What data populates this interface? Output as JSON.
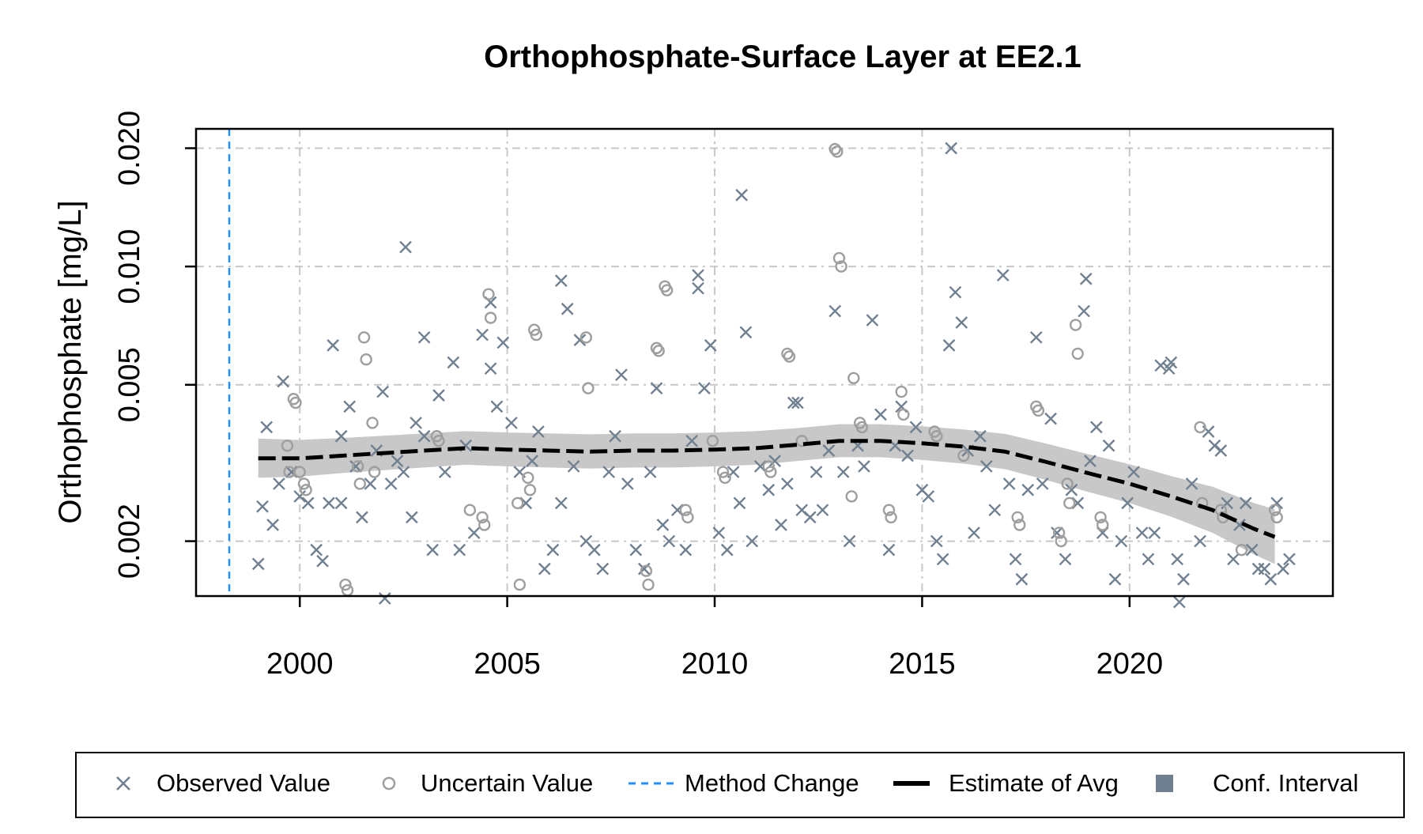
{
  "chart_data": {
    "type": "scatter",
    "title": "Orthophosphate-Surface Layer at EE2.1",
    "xlabel": "",
    "ylabel": "Orthophosphate [mg/L]",
    "x_scale": "linear",
    "y_scale": "log",
    "xlim": [
      1997.5,
      2024.9
    ],
    "ylim": [
      0.00145,
      0.0224
    ],
    "x_ticks": [
      2000,
      2005,
      2010,
      2015,
      2020
    ],
    "x_tick_labels": [
      "2000",
      "2005",
      "2010",
      "2015",
      "2020"
    ],
    "y_ticks": [
      0.002,
      0.005,
      0.01,
      0.02
    ],
    "y_tick_labels": [
      "0.002",
      "0.005",
      "0.010",
      "0.020"
    ],
    "grid": true,
    "legend": {
      "position": "bottom",
      "entries": [
        "Observed Value",
        "Uncertain Value",
        "Method Change",
        "Estimate of Avg",
        "Conf. Interval"
      ]
    },
    "colors": {
      "observed": "#708090",
      "uncertain": "#9e9e9e",
      "method_change": "#1e90ff",
      "estimate": "#000000",
      "ci_band": "#c8c8c8",
      "ci_legend": "#708090",
      "grid": "#c8c8c8"
    },
    "method_change_x": 1998.3,
    "estimate_of_avg": [
      {
        "x": 1999.0,
        "y": 0.00325,
        "lo": 0.0029,
        "hi": 0.00365
      },
      {
        "x": 2000.0,
        "y": 0.00325,
        "lo": 0.00292,
        "hi": 0.00362
      },
      {
        "x": 2001.0,
        "y": 0.0033,
        "lo": 0.00298,
        "hi": 0.00366
      },
      {
        "x": 2002.0,
        "y": 0.00335,
        "lo": 0.00303,
        "hi": 0.00371
      },
      {
        "x": 2003.0,
        "y": 0.0034,
        "lo": 0.00308,
        "hi": 0.00376
      },
      {
        "x": 2004.0,
        "y": 0.00345,
        "lo": 0.00313,
        "hi": 0.00381
      },
      {
        "x": 2005.0,
        "y": 0.00342,
        "lo": 0.0031,
        "hi": 0.00378
      },
      {
        "x": 2006.0,
        "y": 0.0034,
        "lo": 0.00308,
        "hi": 0.00376
      },
      {
        "x": 2007.0,
        "y": 0.00338,
        "lo": 0.00306,
        "hi": 0.00374
      },
      {
        "x": 2008.0,
        "y": 0.0034,
        "lo": 0.00308,
        "hi": 0.00376
      },
      {
        "x": 2009.0,
        "y": 0.0034,
        "lo": 0.00308,
        "hi": 0.00376
      },
      {
        "x": 2010.0,
        "y": 0.00342,
        "lo": 0.0031,
        "hi": 0.00378
      },
      {
        "x": 2011.0,
        "y": 0.00345,
        "lo": 0.00313,
        "hi": 0.00381
      },
      {
        "x": 2012.0,
        "y": 0.00352,
        "lo": 0.0032,
        "hi": 0.00388
      },
      {
        "x": 2013.0,
        "y": 0.0036,
        "lo": 0.00327,
        "hi": 0.00397
      },
      {
        "x": 2014.0,
        "y": 0.0036,
        "lo": 0.00327,
        "hi": 0.00397
      },
      {
        "x": 2015.0,
        "y": 0.00355,
        "lo": 0.00322,
        "hi": 0.00392
      },
      {
        "x": 2016.0,
        "y": 0.00348,
        "lo": 0.00315,
        "hi": 0.00385
      },
      {
        "x": 2017.0,
        "y": 0.00338,
        "lo": 0.00305,
        "hi": 0.00375
      },
      {
        "x": 2018.0,
        "y": 0.00318,
        "lo": 0.00286,
        "hi": 0.00354
      },
      {
        "x": 2019.0,
        "y": 0.00298,
        "lo": 0.00267,
        "hi": 0.00333
      },
      {
        "x": 2020.0,
        "y": 0.0028,
        "lo": 0.0025,
        "hi": 0.00314
      },
      {
        "x": 2021.0,
        "y": 0.0026,
        "lo": 0.00231,
        "hi": 0.00293
      },
      {
        "x": 2022.0,
        "y": 0.0024,
        "lo": 0.0021,
        "hi": 0.00275
      },
      {
        "x": 2023.0,
        "y": 0.00215,
        "lo": 0.00185,
        "hi": 0.0025
      },
      {
        "x": 2023.5,
        "y": 0.00205,
        "lo": 0.00175,
        "hi": 0.00241
      }
    ],
    "observed": [
      [
        1999.0,
        0.00175
      ],
      [
        1999.1,
        0.00245
      ],
      [
        1999.2,
        0.0039
      ],
      [
        1999.35,
        0.0022
      ],
      [
        1999.5,
        0.0028
      ],
      [
        1999.6,
        0.0051
      ],
      [
        1999.8,
        0.003
      ],
      [
        2000.0,
        0.0026
      ],
      [
        2000.2,
        0.0025
      ],
      [
        2000.4,
        0.0019
      ],
      [
        2000.55,
        0.00178
      ],
      [
        2000.7,
        0.0025
      ],
      [
        2000.8,
        0.0063
      ],
      [
        2001.0,
        0.0037
      ],
      [
        2001.2,
        0.0044
      ],
      [
        2001.35,
        0.0031
      ],
      [
        2001.5,
        0.0023
      ],
      [
        2001.7,
        0.0028
      ],
      [
        2001.85,
        0.0034
      ],
      [
        2002.0,
        0.0048
      ],
      [
        2002.2,
        0.0028
      ],
      [
        2002.35,
        0.0032
      ],
      [
        2002.5,
        0.003
      ],
      [
        2002.7,
        0.0023
      ],
      [
        2002.8,
        0.004
      ],
      [
        2003.0,
        0.0037
      ],
      [
        2003.2,
        0.0019
      ],
      [
        2003.35,
        0.0047
      ],
      [
        2003.5,
        0.003
      ],
      [
        2003.7,
        0.0057
      ],
      [
        2003.85,
        0.0019
      ],
      [
        2004.0,
        0.0035
      ],
      [
        2004.2,
        0.0021
      ],
      [
        2004.4,
        0.0067
      ],
      [
        2004.6,
        0.0055
      ],
      [
        2004.75,
        0.0044
      ],
      [
        2004.9,
        0.0064
      ],
      [
        2005.1,
        0.004
      ],
      [
        2005.3,
        0.003
      ],
      [
        2005.45,
        0.0025
      ],
      [
        2005.6,
        0.0032
      ],
      [
        2005.75,
        0.0038
      ],
      [
        2005.9,
        0.0017
      ],
      [
        2006.1,
        0.0019
      ],
      [
        2006.3,
        0.0025
      ],
      [
        2006.45,
        0.0078
      ],
      [
        2006.6,
        0.0031
      ],
      [
        2006.75,
        0.0065
      ],
      [
        2006.9,
        0.002
      ],
      [
        2007.1,
        0.0019
      ],
      [
        2007.3,
        0.0017
      ],
      [
        2007.45,
        0.003
      ],
      [
        2007.6,
        0.0037
      ],
      [
        2007.75,
        0.0053
      ],
      [
        2007.9,
        0.0028
      ],
      [
        2008.1,
        0.0019
      ],
      [
        2008.3,
        0.0017
      ],
      [
        2008.45,
        0.003
      ],
      [
        2008.6,
        0.0049
      ],
      [
        2008.75,
        0.0022
      ],
      [
        2008.9,
        0.002
      ],
      [
        2009.1,
        0.0024
      ],
      [
        2009.3,
        0.0019
      ],
      [
        2009.45,
        0.0036
      ],
      [
        2009.6,
        0.0095
      ],
      [
        2009.75,
        0.0049
      ],
      [
        2009.9,
        0.0063
      ],
      [
        2010.1,
        0.0021
      ],
      [
        2010.3,
        0.0019
      ],
      [
        2010.45,
        0.003
      ],
      [
        2010.6,
        0.0025
      ],
      [
        2010.75,
        0.0068
      ],
      [
        2010.9,
        0.002
      ],
      [
        2011.1,
        0.0031
      ],
      [
        2011.3,
        0.0027
      ],
      [
        2011.45,
        0.0032
      ],
      [
        2011.6,
        0.0022
      ],
      [
        2011.75,
        0.0028
      ],
      [
        2011.9,
        0.0045
      ],
      [
        2012.1,
        0.0024
      ],
      [
        2012.3,
        0.0023
      ],
      [
        2012.45,
        0.003
      ],
      [
        2012.6,
        0.0024
      ],
      [
        2012.75,
        0.0034
      ],
      [
        2012.9,
        0.0077
      ],
      [
        2013.1,
        0.003
      ],
      [
        2013.25,
        0.002
      ],
      [
        2013.45,
        0.0035
      ],
      [
        2013.6,
        0.0031
      ],
      [
        2013.8,
        0.0073
      ],
      [
        2014.0,
        0.0042
      ],
      [
        2014.2,
        0.0019
      ],
      [
        2014.35,
        0.0035
      ],
      [
        2014.5,
        0.0044
      ],
      [
        2014.65,
        0.0033
      ],
      [
        2014.85,
        0.0039
      ],
      [
        2015.0,
        0.0027
      ],
      [
        2015.15,
        0.0026
      ],
      [
        2015.35,
        0.002
      ],
      [
        2015.5,
        0.0018
      ],
      [
        2015.65,
        0.0063
      ],
      [
        2015.8,
        0.0086
      ],
      [
        2015.95,
        0.0072
      ],
      [
        2016.1,
        0.0034
      ],
      [
        2016.25,
        0.0021
      ],
      [
        2016.4,
        0.0037
      ],
      [
        2016.55,
        0.0031
      ],
      [
        2016.75,
        0.0024
      ],
      [
        2016.95,
        0.0095
      ],
      [
        2017.1,
        0.0028
      ],
      [
        2017.25,
        0.0018
      ],
      [
        2017.4,
        0.0016
      ],
      [
        2017.55,
        0.0027
      ],
      [
        2017.75,
        0.0066
      ],
      [
        2017.9,
        0.0028
      ],
      [
        2018.1,
        0.0041
      ],
      [
        2018.25,
        0.0021
      ],
      [
        2018.45,
        0.0018
      ],
      [
        2018.6,
        0.0027
      ],
      [
        2018.75,
        0.0025
      ],
      [
        2018.9,
        0.0077
      ],
      [
        2019.05,
        0.0032
      ],
      [
        2019.2,
        0.0039
      ],
      [
        2019.35,
        0.0021
      ],
      [
        2019.5,
        0.0035
      ],
      [
        2019.65,
        0.0016
      ],
      [
        2019.8,
        0.002
      ],
      [
        2019.95,
        0.0025
      ],
      [
        2020.1,
        0.003
      ],
      [
        2020.3,
        0.0021
      ],
      [
        2020.45,
        0.0018
      ],
      [
        2020.6,
        0.0021
      ],
      [
        2020.75,
        0.0056
      ],
      [
        2020.95,
        0.0055
      ],
      [
        2021.15,
        0.0018
      ],
      [
        2021.3,
        0.0016
      ],
      [
        2021.5,
        0.0028
      ],
      [
        2021.7,
        0.002
      ],
      [
        2021.9,
        0.0038
      ],
      [
        2022.05,
        0.0035
      ],
      [
        2022.2,
        0.0034
      ],
      [
        2022.35,
        0.0025
      ],
      [
        2022.5,
        0.0018
      ],
      [
        2022.65,
        0.0022
      ],
      [
        2022.8,
        0.0025
      ],
      [
        2022.95,
        0.0019
      ],
      [
        2023.1,
        0.0017
      ],
      [
        2023.25,
        0.0017
      ],
      [
        2023.4,
        0.0016
      ],
      [
        2023.55,
        0.0025
      ],
      [
        2023.7,
        0.0017
      ],
      [
        2023.85,
        0.0018
      ],
      [
        2021.0,
        0.0057
      ],
      [
        2021.2,
        0.0014
      ],
      [
        2002.05,
        0.00143
      ],
      [
        2012.0,
        0.0045
      ],
      [
        2015.7,
        0.02
      ],
      [
        2010.65,
        0.0152
      ],
      [
        2002.55,
        0.0112
      ],
      [
        2006.3,
        0.0092
      ],
      [
        2018.95,
        0.0093
      ],
      [
        2009.6,
        0.0088
      ],
      [
        2004.6,
        0.0081
      ],
      [
        2003.0,
        0.0066
      ],
      [
        2001.0,
        0.0025
      ]
    ],
    "uncertain": [
      [
        1999.7,
        0.0035
      ],
      [
        1999.75,
        0.003
      ],
      [
        1999.85,
        0.0046
      ],
      [
        1999.9,
        0.0045
      ],
      [
        2000.1,
        0.0028
      ],
      [
        2000.15,
        0.0027
      ],
      [
        2001.1,
        0.00155
      ],
      [
        2001.15,
        0.0015
      ],
      [
        2001.4,
        0.0031
      ],
      [
        2001.45,
        0.0028
      ],
      [
        2001.55,
        0.0066
      ],
      [
        2001.6,
        0.0058
      ],
      [
        2001.75,
        0.004
      ],
      [
        2001.8,
        0.003
      ],
      [
        2003.3,
        0.0037
      ],
      [
        2003.35,
        0.0036
      ],
      [
        2004.4,
        0.0023
      ],
      [
        2004.45,
        0.0022
      ],
      [
        2004.55,
        0.0085
      ],
      [
        2004.6,
        0.0074
      ],
      [
        2005.25,
        0.0025
      ],
      [
        2005.3,
        0.00155
      ],
      [
        2005.5,
        0.0029
      ],
      [
        2005.55,
        0.0027
      ],
      [
        2005.65,
        0.0069
      ],
      [
        2005.7,
        0.0067
      ],
      [
        2006.9,
        0.0066
      ],
      [
        2006.95,
        0.0049
      ],
      [
        2008.35,
        0.00168
      ],
      [
        2008.4,
        0.00155
      ],
      [
        2008.6,
        0.0062
      ],
      [
        2008.65,
        0.0061
      ],
      [
        2008.8,
        0.0089
      ],
      [
        2008.85,
        0.0087
      ],
      [
        2009.3,
        0.0024
      ],
      [
        2009.35,
        0.0023
      ],
      [
        2010.2,
        0.003
      ],
      [
        2010.25,
        0.0029
      ],
      [
        2011.3,
        0.0031
      ],
      [
        2011.35,
        0.003
      ],
      [
        2011.75,
        0.006
      ],
      [
        2011.8,
        0.0059
      ],
      [
        2012.9,
        0.0199
      ],
      [
        2012.95,
        0.0196
      ],
      [
        2013.0,
        0.0105
      ],
      [
        2013.05,
        0.01
      ],
      [
        2013.5,
        0.004
      ],
      [
        2013.55,
        0.0039
      ],
      [
        2014.2,
        0.0024
      ],
      [
        2014.25,
        0.0023
      ],
      [
        2014.5,
        0.0048
      ],
      [
        2014.55,
        0.0042
      ],
      [
        2015.3,
        0.0038
      ],
      [
        2015.35,
        0.0037
      ],
      [
        2017.3,
        0.0023
      ],
      [
        2017.35,
        0.0022
      ],
      [
        2017.75,
        0.0044
      ],
      [
        2017.8,
        0.0043
      ],
      [
        2018.3,
        0.0021
      ],
      [
        2018.35,
        0.002
      ],
      [
        2018.5,
        0.0028
      ],
      [
        2018.55,
        0.0025
      ],
      [
        2018.7,
        0.0071
      ],
      [
        2018.75,
        0.006
      ],
      [
        2019.3,
        0.0023
      ],
      [
        2019.35,
        0.0022
      ],
      [
        2021.7,
        0.0039
      ],
      [
        2021.75,
        0.0025
      ],
      [
        2022.2,
        0.0024
      ],
      [
        2022.25,
        0.0023
      ],
      [
        2023.5,
        0.0024
      ],
      [
        2023.55,
        0.0023
      ],
      [
        2022.7,
        0.0019
      ],
      [
        2013.3,
        0.0026
      ],
      [
        2013.35,
        0.0052
      ],
      [
        2004.1,
        0.0024
      ],
      [
        2009.95,
        0.0036
      ],
      [
        2000.0,
        0.003
      ],
      [
        2012.1,
        0.0036
      ],
      [
        2016.0,
        0.0033
      ]
    ]
  }
}
